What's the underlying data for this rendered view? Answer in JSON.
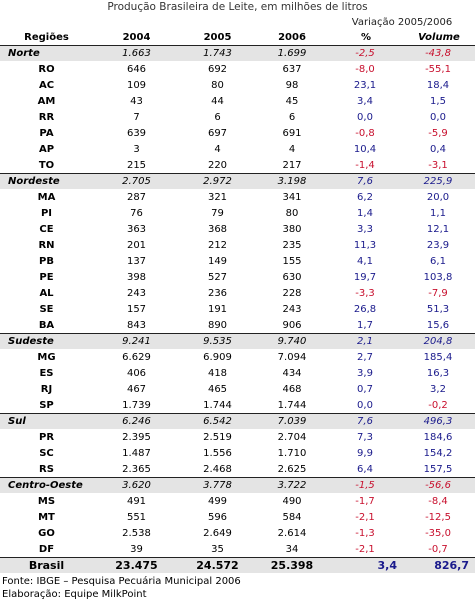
{
  "title": "Produção Brasileira de Leite, em milhões de litros",
  "variation_label": "Variação 2005/2006",
  "headers": {
    "region": "Regiões",
    "y2004": "2004",
    "y2005": "2005",
    "y2006": "2006",
    "pct": "%",
    "vol": "Volume"
  },
  "rows": [
    {
      "type": "region",
      "name": "Norte",
      "y2004": "1.663",
      "y2005": "1.743",
      "y2006": "1.699",
      "pct": "-2,5",
      "vol": "-43,8",
      "pct_sign": "neg",
      "vol_sign": "neg"
    },
    {
      "type": "state",
      "name": "RO",
      "y2004": "646",
      "y2005": "692",
      "y2006": "637",
      "pct": "-8,0",
      "vol": "-55,1",
      "pct_sign": "neg",
      "vol_sign": "neg"
    },
    {
      "type": "state",
      "name": "AC",
      "y2004": "109",
      "y2005": "80",
      "y2006": "98",
      "pct": "23,1",
      "vol": "18,4",
      "pct_sign": "pos",
      "vol_sign": "pos"
    },
    {
      "type": "state",
      "name": "AM",
      "y2004": "43",
      "y2005": "44",
      "y2006": "45",
      "pct": "3,4",
      "vol": "1,5",
      "pct_sign": "pos",
      "vol_sign": "pos"
    },
    {
      "type": "state",
      "name": "RR",
      "y2004": "7",
      "y2005": "6",
      "y2006": "6",
      "pct": "0,0",
      "vol": "0,0",
      "pct_sign": "pos",
      "vol_sign": "pos"
    },
    {
      "type": "state",
      "name": "PA",
      "y2004": "639",
      "y2005": "697",
      "y2006": "691",
      "pct": "-0,8",
      "vol": "-5,9",
      "pct_sign": "neg",
      "vol_sign": "neg"
    },
    {
      "type": "state",
      "name": "AP",
      "y2004": "3",
      "y2005": "4",
      "y2006": "4",
      "pct": "10,4",
      "vol": "0,4",
      "pct_sign": "pos",
      "vol_sign": "pos"
    },
    {
      "type": "state",
      "name": "TO",
      "y2004": "215",
      "y2005": "220",
      "y2006": "217",
      "pct": "-1,4",
      "vol": "-3,1",
      "pct_sign": "neg",
      "vol_sign": "neg"
    },
    {
      "type": "region",
      "name": "Nordeste",
      "y2004": "2.705",
      "y2005": "2.972",
      "y2006": "3.198",
      "pct": "7,6",
      "vol": "225,9",
      "pct_sign": "pos",
      "vol_sign": "pos"
    },
    {
      "type": "state",
      "name": "MA",
      "y2004": "287",
      "y2005": "321",
      "y2006": "341",
      "pct": "6,2",
      "vol": "20,0",
      "pct_sign": "pos",
      "vol_sign": "pos"
    },
    {
      "type": "state",
      "name": "PI",
      "y2004": "76",
      "y2005": "79",
      "y2006": "80",
      "pct": "1,4",
      "vol": "1,1",
      "pct_sign": "pos",
      "vol_sign": "pos"
    },
    {
      "type": "state",
      "name": "CE",
      "y2004": "363",
      "y2005": "368",
      "y2006": "380",
      "pct": "3,3",
      "vol": "12,1",
      "pct_sign": "pos",
      "vol_sign": "pos"
    },
    {
      "type": "state",
      "name": "RN",
      "y2004": "201",
      "y2005": "212",
      "y2006": "235",
      "pct": "11,3",
      "vol": "23,9",
      "pct_sign": "pos",
      "vol_sign": "pos"
    },
    {
      "type": "state",
      "name": "PB",
      "y2004": "137",
      "y2005": "149",
      "y2006": "155",
      "pct": "4,1",
      "vol": "6,1",
      "pct_sign": "pos",
      "vol_sign": "pos"
    },
    {
      "type": "state",
      "name": "PE",
      "y2004": "398",
      "y2005": "527",
      "y2006": "630",
      "pct": "19,7",
      "vol": "103,8",
      "pct_sign": "pos",
      "vol_sign": "pos"
    },
    {
      "type": "state",
      "name": "AL",
      "y2004": "243",
      "y2005": "236",
      "y2006": "228",
      "pct": "-3,3",
      "vol": "-7,9",
      "pct_sign": "neg",
      "vol_sign": "neg"
    },
    {
      "type": "state",
      "name": "SE",
      "y2004": "157",
      "y2005": "191",
      "y2006": "243",
      "pct": "26,8",
      "vol": "51,3",
      "pct_sign": "pos",
      "vol_sign": "pos"
    },
    {
      "type": "state",
      "name": "BA",
      "y2004": "843",
      "y2005": "890",
      "y2006": "906",
      "pct": "1,7",
      "vol": "15,6",
      "pct_sign": "pos",
      "vol_sign": "pos"
    },
    {
      "type": "region",
      "name": "Sudeste",
      "y2004": "9.241",
      "y2005": "9.535",
      "y2006": "9.740",
      "pct": "2,1",
      "vol": "204,8",
      "pct_sign": "pos",
      "vol_sign": "pos"
    },
    {
      "type": "state",
      "name": "MG",
      "y2004": "6.629",
      "y2005": "6.909",
      "y2006": "7.094",
      "pct": "2,7",
      "vol": "185,4",
      "pct_sign": "pos",
      "vol_sign": "pos"
    },
    {
      "type": "state",
      "name": "ES",
      "y2004": "406",
      "y2005": "418",
      "y2006": "434",
      "pct": "3,9",
      "vol": "16,3",
      "pct_sign": "pos",
      "vol_sign": "pos"
    },
    {
      "type": "state",
      "name": "RJ",
      "y2004": "467",
      "y2005": "465",
      "y2006": "468",
      "pct": "0,7",
      "vol": "3,2",
      "pct_sign": "pos",
      "vol_sign": "pos"
    },
    {
      "type": "state",
      "name": "SP",
      "y2004": "1.739",
      "y2005": "1.744",
      "y2006": "1.744",
      "pct": "0,0",
      "vol": "-0,2",
      "pct_sign": "pos",
      "vol_sign": "neg"
    },
    {
      "type": "region",
      "name": "Sul",
      "y2004": "6.246",
      "y2005": "6.542",
      "y2006": "7.039",
      "pct": "7,6",
      "vol": "496,3",
      "pct_sign": "pos",
      "vol_sign": "pos"
    },
    {
      "type": "state",
      "name": "PR",
      "y2004": "2.395",
      "y2005": "2.519",
      "y2006": "2.704",
      "pct": "7,3",
      "vol": "184,6",
      "pct_sign": "pos",
      "vol_sign": "pos"
    },
    {
      "type": "state",
      "name": "SC",
      "y2004": "1.487",
      "y2005": "1.556",
      "y2006": "1.710",
      "pct": "9,9",
      "vol": "154,2",
      "pct_sign": "pos",
      "vol_sign": "pos"
    },
    {
      "type": "state",
      "name": "RS",
      "y2004": "2.365",
      "y2005": "2.468",
      "y2006": "2.625",
      "pct": "6,4",
      "vol": "157,5",
      "pct_sign": "pos",
      "vol_sign": "pos"
    },
    {
      "type": "region",
      "name": "Centro-Oeste",
      "y2004": "3.620",
      "y2005": "3.778",
      "y2006": "3.722",
      "pct": "-1,5",
      "vol": "-56,6",
      "pct_sign": "neg",
      "vol_sign": "neg"
    },
    {
      "type": "state",
      "name": "MS",
      "y2004": "491",
      "y2005": "499",
      "y2006": "490",
      "pct": "-1,7",
      "vol": "-8,4",
      "pct_sign": "neg",
      "vol_sign": "neg"
    },
    {
      "type": "state",
      "name": "MT",
      "y2004": "551",
      "y2005": "596",
      "y2006": "584",
      "pct": "-2,1",
      "vol": "-12,5",
      "pct_sign": "neg",
      "vol_sign": "neg"
    },
    {
      "type": "state",
      "name": "GO",
      "y2004": "2.538",
      "y2005": "2.649",
      "y2006": "2.614",
      "pct": "-1,3",
      "vol": "-35,0",
      "pct_sign": "neg",
      "vol_sign": "neg"
    },
    {
      "type": "state",
      "name": "DF",
      "y2004": "39",
      "y2005": "35",
      "y2006": "34",
      "pct": "-2,1",
      "vol": "-0,7",
      "pct_sign": "neg",
      "vol_sign": "neg"
    },
    {
      "type": "brasil",
      "name": "Brasil",
      "y2004": "23.475",
      "y2005": "24.572",
      "y2006": "25.398",
      "pct": "3,4",
      "vol": "826,7",
      "pct_sign": "pos",
      "vol_sign": "pos"
    }
  ],
  "footer": {
    "source": "Fonte: IBGE – Pesquisa Pecuária Municipal 2006",
    "credit": "Elaboração: Equipe MilkPoint"
  },
  "colors": {
    "positive": "#1a1a8c",
    "negative": "#c8102e",
    "region_bg": "#e4e4e4"
  }
}
